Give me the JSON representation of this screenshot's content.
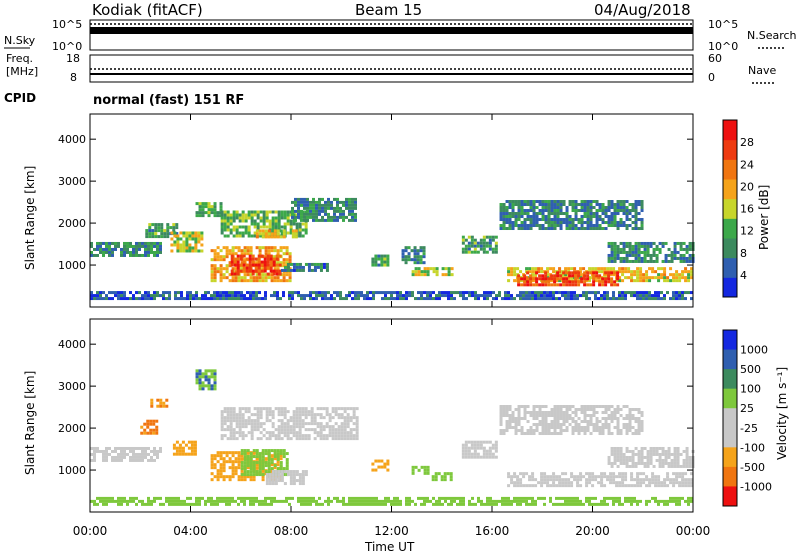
{
  "header": {
    "station": "Kodiak (fitACF)",
    "beam": "Beam 15",
    "date": "04/Aug/2018"
  },
  "status_panels": {
    "nsky_label": "N.Sky",
    "nsearch_label": "N.Search",
    "freq_label_1": "Freq.",
    "freq_label_2": "[MHz]",
    "nave_label": "Nave",
    "cpid_label": "CPID",
    "cpid_value": "normal (fast) 151 RF",
    "left_ticks_top": [
      "10^5",
      "10^0"
    ],
    "right_ticks_top": [
      "10^5",
      "10^0"
    ],
    "left_ticks_freq": [
      "18",
      "8"
    ],
    "right_ticks_nave": [
      "60",
      "0"
    ]
  },
  "colors": {
    "power_scale": [
      "#1428e0",
      "#2f5fb0",
      "#3c8a5e",
      "#3ca84a",
      "#c7d52b",
      "#f5a31a",
      "#f07510",
      "#ee3a10",
      "#ee1010"
    ],
    "velocity_scale": [
      "#1428e0",
      "#2f5fb0",
      "#3c8a5e",
      "#7ec83c",
      "#c8c8c8",
      "#c8c8c8",
      "#f5a31a",
      "#f07510",
      "#ee1010"
    ]
  },
  "chart_data": [
    {
      "type": "heatmap",
      "panel": "power",
      "ylabel": "Slant Range [km]",
      "yticks": [
        "1000",
        "2000",
        "3000",
        "4000"
      ],
      "ylim": [
        0,
        4600
      ],
      "xlim": [
        0,
        24
      ],
      "colorbar_label": "Power [dB]",
      "colorbar_ticks": [
        "4",
        "8",
        "12",
        "16",
        "20",
        "24",
        "28"
      ],
      "colorbar_range": [
        0,
        32
      ],
      "regions": [
        {
          "t0": 0.0,
          "t1": 2.8,
          "r0": 1250,
          "r1": 1550,
          "v": 10
        },
        {
          "t0": 2.2,
          "t1": 3.4,
          "r0": 1650,
          "r1": 2000,
          "v": 12
        },
        {
          "t0": 3.2,
          "t1": 4.4,
          "r0": 1300,
          "r1": 1800,
          "v": 18
        },
        {
          "t0": 4.2,
          "t1": 5.2,
          "r0": 2150,
          "r1": 2500,
          "v": 14
        },
        {
          "t0": 4.8,
          "t1": 8.0,
          "r0": 650,
          "r1": 1450,
          "v": 22
        },
        {
          "t0": 5.6,
          "t1": 7.6,
          "r0": 750,
          "r1": 1250,
          "v": 30
        },
        {
          "t0": 5.2,
          "t1": 8.6,
          "r0": 1700,
          "r1": 2300,
          "v": 14
        },
        {
          "t0": 6.6,
          "t1": 8.2,
          "r0": 1650,
          "r1": 1850,
          "v": 20
        },
        {
          "t0": 8.0,
          "t1": 10.6,
          "r0": 2050,
          "r1": 2600,
          "v": 10
        },
        {
          "t0": 7.6,
          "t1": 9.4,
          "r0": 850,
          "r1": 1050,
          "v": 8
        },
        {
          "t0": 11.2,
          "t1": 11.8,
          "r0": 1000,
          "r1": 1250,
          "v": 12
        },
        {
          "t0": 12.4,
          "t1": 13.3,
          "r0": 1050,
          "r1": 1450,
          "v": 10
        },
        {
          "t0": 12.8,
          "t1": 14.4,
          "r0": 750,
          "r1": 950,
          "v": 18
        },
        {
          "t0": 14.8,
          "t1": 16.2,
          "r0": 1300,
          "r1": 1700,
          "v": 12
        },
        {
          "t0": 16.3,
          "t1": 22.0,
          "r0": 1850,
          "r1": 2550,
          "v": 9
        },
        {
          "t0": 16.6,
          "t1": 24.0,
          "r0": 600,
          "r1": 950,
          "v": 20
        },
        {
          "t0": 17.0,
          "t1": 21.0,
          "r0": 550,
          "r1": 850,
          "v": 30
        },
        {
          "t0": 20.6,
          "t1": 24.0,
          "r0": 1100,
          "r1": 1550,
          "v": 10
        },
        {
          "t0": 0.0,
          "t1": 24.0,
          "r0": 180,
          "r1": 380,
          "v": 6
        }
      ]
    },
    {
      "type": "heatmap",
      "panel": "velocity",
      "ylabel": "Slant Range [km]",
      "yticks": [
        "1000",
        "2000",
        "3000",
        "4000"
      ],
      "ylim": [
        0,
        4600
      ],
      "xlim": [
        0,
        24
      ],
      "xlabel": "Time UT",
      "xticks": [
        "00:00",
        "04:00",
        "08:00",
        "12:00",
        "16:00",
        "20:00",
        "00:00"
      ],
      "colorbar_label": "Velocity [m s⁻¹]",
      "colorbar_ticks": [
        "1000",
        "500",
        "100",
        "25",
        "-25",
        "-100",
        "-500",
        "-1000"
      ],
      "regions": [
        {
          "t0": 0.0,
          "t1": 2.8,
          "r0": 1250,
          "r1": 1550,
          "v": 0
        },
        {
          "t0": 2.0,
          "t1": 2.6,
          "r0": 1900,
          "r1": 2200,
          "v": -400
        },
        {
          "t0": 2.4,
          "t1": 3.0,
          "r0": 2500,
          "r1": 2700,
          "v": -300
        },
        {
          "t0": 3.3,
          "t1": 4.2,
          "r0": 1400,
          "r1": 1700,
          "v": -150
        },
        {
          "t0": 4.2,
          "t1": 5.0,
          "r0": 2900,
          "r1": 3400,
          "v": 300
        },
        {
          "t0": 4.8,
          "t1": 7.6,
          "r0": 750,
          "r1": 1450,
          "v": -200
        },
        {
          "t0": 6.0,
          "t1": 7.8,
          "r0": 900,
          "r1": 1500,
          "v": 80
        },
        {
          "t0": 7.0,
          "t1": 8.6,
          "r0": 700,
          "r1": 1000,
          "v": 0
        },
        {
          "t0": 5.2,
          "t1": 10.6,
          "r0": 1750,
          "r1": 2500,
          "v": 0
        },
        {
          "t0": 11.2,
          "t1": 11.8,
          "r0": 1000,
          "r1": 1250,
          "v": -200
        },
        {
          "t0": 12.8,
          "t1": 13.4,
          "r0": 950,
          "r1": 1100,
          "v": 200
        },
        {
          "t0": 13.6,
          "t1": 14.4,
          "r0": 750,
          "r1": 950,
          "v": 150
        },
        {
          "t0": 14.8,
          "t1": 16.2,
          "r0": 1300,
          "r1": 1700,
          "v": 0
        },
        {
          "t0": 16.3,
          "t1": 22.0,
          "r0": 1850,
          "r1": 2550,
          "v": 0
        },
        {
          "t0": 16.6,
          "t1": 24.0,
          "r0": 600,
          "r1": 950,
          "v": 0
        },
        {
          "t0": 20.6,
          "t1": 24.0,
          "r0": 1100,
          "r1": 1550,
          "v": 0
        },
        {
          "t0": 0.0,
          "t1": 24.0,
          "r0": 180,
          "r1": 360,
          "v": 50
        }
      ]
    }
  ]
}
